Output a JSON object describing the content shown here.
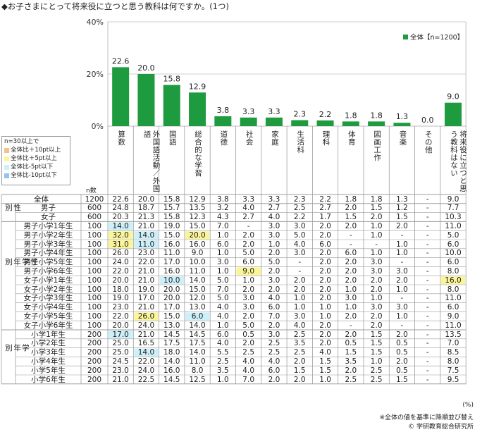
{
  "title": "◆お子さまにとって将来役に立つと思う教科は何ですか。(1つ)",
  "legend_box": {
    "title": "n=30以上で",
    "items": [
      {
        "label": "全体比＋10pt以上",
        "color": "#f5c18a"
      },
      {
        "label": "全体比＋5pt以上",
        "color": "#fbf59a"
      },
      {
        "label": "全体比-5pt以下",
        "color": "#cdeffa"
      },
      {
        "label": "全体比-10pt以下",
        "color": "#8fc7ea"
      }
    ]
  },
  "n_label": "n数",
  "footnote_unit": "(%)",
  "footnote_sort": "※全体の値を基準に降順並び替え",
  "footnote_copyright": "© 学研教育総合研究所",
  "colors": {
    "bar": "#1f9b3f",
    "grid": "#cfcfcf"
  },
  "chart_data": {
    "type": "bar",
    "categories": [
      "算数",
      "外国語活動／外国語",
      "国語",
      "総合的な学習",
      "道徳",
      "社会",
      "家庭",
      "生活科",
      "理科",
      "体育",
      "図画工作",
      "音楽",
      "その他",
      "将来役に立つと思う教科はない"
    ],
    "series": [
      {
        "name": "全体【n=1200】",
        "values": [
          22.6,
          20.0,
          15.8,
          12.9,
          3.8,
          3.3,
          3.3,
          2.3,
          2.2,
          1.8,
          1.8,
          1.3,
          0.0,
          9.0
        ]
      }
    ],
    "data_labels": [
      "22.6",
      "20.0",
      "15.8",
      "12.9",
      "3.8",
      "3.3",
      "3.3",
      "2.3",
      "2.2",
      "1.8",
      "1.8",
      "1.3",
      "0.0",
      "9.0"
    ],
    "ylim": [
      0,
      40
    ],
    "yticks": [
      "0%",
      "20%",
      "40%"
    ],
    "legend": "top-right",
    "grid": true
  },
  "table": {
    "rows": [
      {
        "group": "",
        "label": "全体",
        "n": "1200",
        "values": [
          "22.6",
          "20.0",
          "15.8",
          "12.9",
          "3.8",
          "3.3",
          "3.3",
          "2.3",
          "2.2",
          "1.8",
          "1.8",
          "1.3",
          "-",
          "9.0"
        ],
        "hl": {}
      },
      {
        "group": "性別",
        "label": "男子",
        "n": "600",
        "values": [
          "24.8",
          "18.7",
          "15.7",
          "13.5",
          "3.2",
          "4.0",
          "2.7",
          "2.5",
          "2.7",
          "2.0",
          "1.5",
          "1.2",
          "-",
          "7.7"
        ],
        "hl": {}
      },
      {
        "group": "性別",
        "label": "女子",
        "n": "600",
        "values": [
          "20.3",
          "21.3",
          "15.8",
          "12.3",
          "4.3",
          "2.7",
          "4.0",
          "2.2",
          "1.7",
          "1.5",
          "2.0",
          "1.5",
          "-",
          "10.3"
        ],
        "hl": {}
      },
      {
        "group": "性学年別",
        "label": "男子小学1年生",
        "n": "100",
        "values": [
          "14.0",
          "21.0",
          "19.0",
          "15.0",
          "7.0",
          "-",
          "3.0",
          "3.0",
          "2.0",
          "2.0",
          "1.0",
          "2.0",
          "-",
          "11.0"
        ],
        "hl": {
          "0": "lb"
        }
      },
      {
        "group": "性学年別",
        "label": "男子小学2年生",
        "n": "100",
        "values": [
          "32.0",
          "14.0",
          "15.0",
          "20.0",
          "1.0",
          "2.0",
          "3.0",
          "5.0",
          "2.0",
          "-",
          "1.0",
          "-",
          "-",
          "5.0"
        ],
        "hl": {
          "0": "y",
          "1": "lb",
          "3": "y"
        }
      },
      {
        "group": "性学年別",
        "label": "男子小学3年生",
        "n": "100",
        "values": [
          "31.0",
          "11.0",
          "16.0",
          "16.0",
          "6.0",
          "2.0",
          "1.0",
          "4.0",
          "6.0",
          "-",
          "-",
          "1.0",
          "-",
          "6.0"
        ],
        "hl": {
          "0": "y",
          "1": "lb"
        }
      },
      {
        "group": "性学年別",
        "label": "男子小学4年生",
        "n": "100",
        "values": [
          "26.0",
          "23.0",
          "11.0",
          "9.0",
          "1.0",
          "5.0",
          "2.0",
          "3.0",
          "2.0",
          "6.0",
          "1.0",
          "1.0",
          "-",
          "10.0"
        ],
        "hl": {}
      },
      {
        "group": "性学年別",
        "label": "男子小学5年生",
        "n": "100",
        "values": [
          "24.0",
          "22.0",
          "17.0",
          "10.0",
          "3.0",
          "6.0",
          "5.0",
          "-",
          "2.0",
          "2.0",
          "3.0",
          "-",
          "-",
          "6.0"
        ],
        "hl": {}
      },
      {
        "group": "性学年別",
        "label": "男子小学6年生",
        "n": "100",
        "values": [
          "22.0",
          "21.0",
          "16.0",
          "11.0",
          "1.0",
          "9.0",
          "2.0",
          "-",
          "2.0",
          "2.0",
          "3.0",
          "3.0",
          "-",
          "8.0"
        ],
        "hl": {
          "5": "y"
        }
      },
      {
        "group": "性学年別",
        "label": "女子小学1年生",
        "n": "100",
        "values": [
          "20.0",
          "21.0",
          "10.0",
          "14.0",
          "5.0",
          "1.0",
          "3.0",
          "2.0",
          "2.0",
          "2.0",
          "2.0",
          "2.0",
          "-",
          "16.0"
        ],
        "hl": {
          "2": "lb",
          "13": "y"
        }
      },
      {
        "group": "性学年別",
        "label": "女子小学2年生",
        "n": "100",
        "values": [
          "18.0",
          "19.0",
          "20.0",
          "15.0",
          "7.0",
          "2.0",
          "2.0",
          "2.0",
          "2.0",
          "1.0",
          "2.0",
          "1.0",
          "-",
          "8.0"
        ],
        "hl": {}
      },
      {
        "group": "性学年別",
        "label": "女子小学3年生",
        "n": "100",
        "values": [
          "19.0",
          "17.0",
          "20.0",
          "12.0",
          "5.0",
          "3.0",
          "4.0",
          "1.0",
          "2.0",
          "3.0",
          "1.0",
          "-",
          "-",
          "11.0"
        ],
        "hl": {}
      },
      {
        "group": "性学年別",
        "label": "女子小学4年生",
        "n": "100",
        "values": [
          "23.0",
          "21.0",
          "17.0",
          "13.0",
          "4.0",
          "3.0",
          "6.0",
          "1.0",
          "1.0",
          "1.0",
          "3.0",
          "3.0",
          "-",
          "6.0"
        ],
        "hl": {}
      },
      {
        "group": "性学年別",
        "label": "女子小学5年生",
        "n": "100",
        "values": [
          "22.0",
          "26.0",
          "15.0",
          "6.0",
          "4.0",
          "2.0",
          "7.0",
          "3.0",
          "1.0",
          "2.0",
          "2.0",
          "1.0",
          "-",
          "9.0"
        ],
        "hl": {
          "1": "y",
          "3": "lb"
        }
      },
      {
        "group": "性学年別",
        "label": "女子小学6年生",
        "n": "100",
        "values": [
          "20.0",
          "24.0",
          "13.0",
          "14.0",
          "1.0",
          "5.0",
          "2.0",
          "4.0",
          "2.0",
          "-",
          "2.0",
          "-",
          "-",
          "11.0"
        ],
        "hl": {}
      },
      {
        "group": "学年別",
        "label": "小学1年生",
        "n": "200",
        "values": [
          "17.0",
          "21.0",
          "14.5",
          "14.5",
          "6.0",
          "0.5",
          "3.0",
          "2.5",
          "2.0",
          "2.0",
          "1.5",
          "2.0",
          "-",
          "13.5"
        ],
        "hl": {
          "0": "lb"
        }
      },
      {
        "group": "学年別",
        "label": "小学2年生",
        "n": "200",
        "values": [
          "25.0",
          "16.5",
          "17.5",
          "17.5",
          "4.0",
          "2.0",
          "2.5",
          "3.5",
          "2.0",
          "0.5",
          "1.5",
          "0.5",
          "-",
          "7.0"
        ],
        "hl": {}
      },
      {
        "group": "学年別",
        "label": "小学3年生",
        "n": "200",
        "values": [
          "25.0",
          "14.0",
          "18.0",
          "14.0",
          "5.5",
          "2.5",
          "2.5",
          "2.5",
          "4.0",
          "1.5",
          "1.5",
          "0.5",
          "-",
          "8.5"
        ],
        "hl": {
          "1": "lb"
        }
      },
      {
        "group": "学年別",
        "label": "小学4年生",
        "n": "200",
        "values": [
          "24.5",
          "22.0",
          "14.0",
          "11.0",
          "2.5",
          "4.0",
          "4.0",
          "2.0",
          "1.5",
          "3.5",
          "1.0",
          "2.0",
          "-",
          "8.0"
        ],
        "hl": {}
      },
      {
        "group": "学年別",
        "label": "小学5年生",
        "n": "200",
        "values": [
          "23.0",
          "24.0",
          "16.0",
          "8.0",
          "3.5",
          "4.0",
          "6.0",
          "1.5",
          "1.5",
          "2.0",
          "2.5",
          "0.5",
          "-",
          "7.5"
        ],
        "hl": {}
      },
      {
        "group": "学年別",
        "label": "小学6年生",
        "n": "200",
        "values": [
          "21.0",
          "22.5",
          "14.5",
          "12.5",
          "1.0",
          "7.0",
          "2.0",
          "2.0",
          "1.0",
          "2.5",
          "2.5",
          "1.5",
          "-",
          "9.5"
        ],
        "hl": {}
      }
    ]
  }
}
